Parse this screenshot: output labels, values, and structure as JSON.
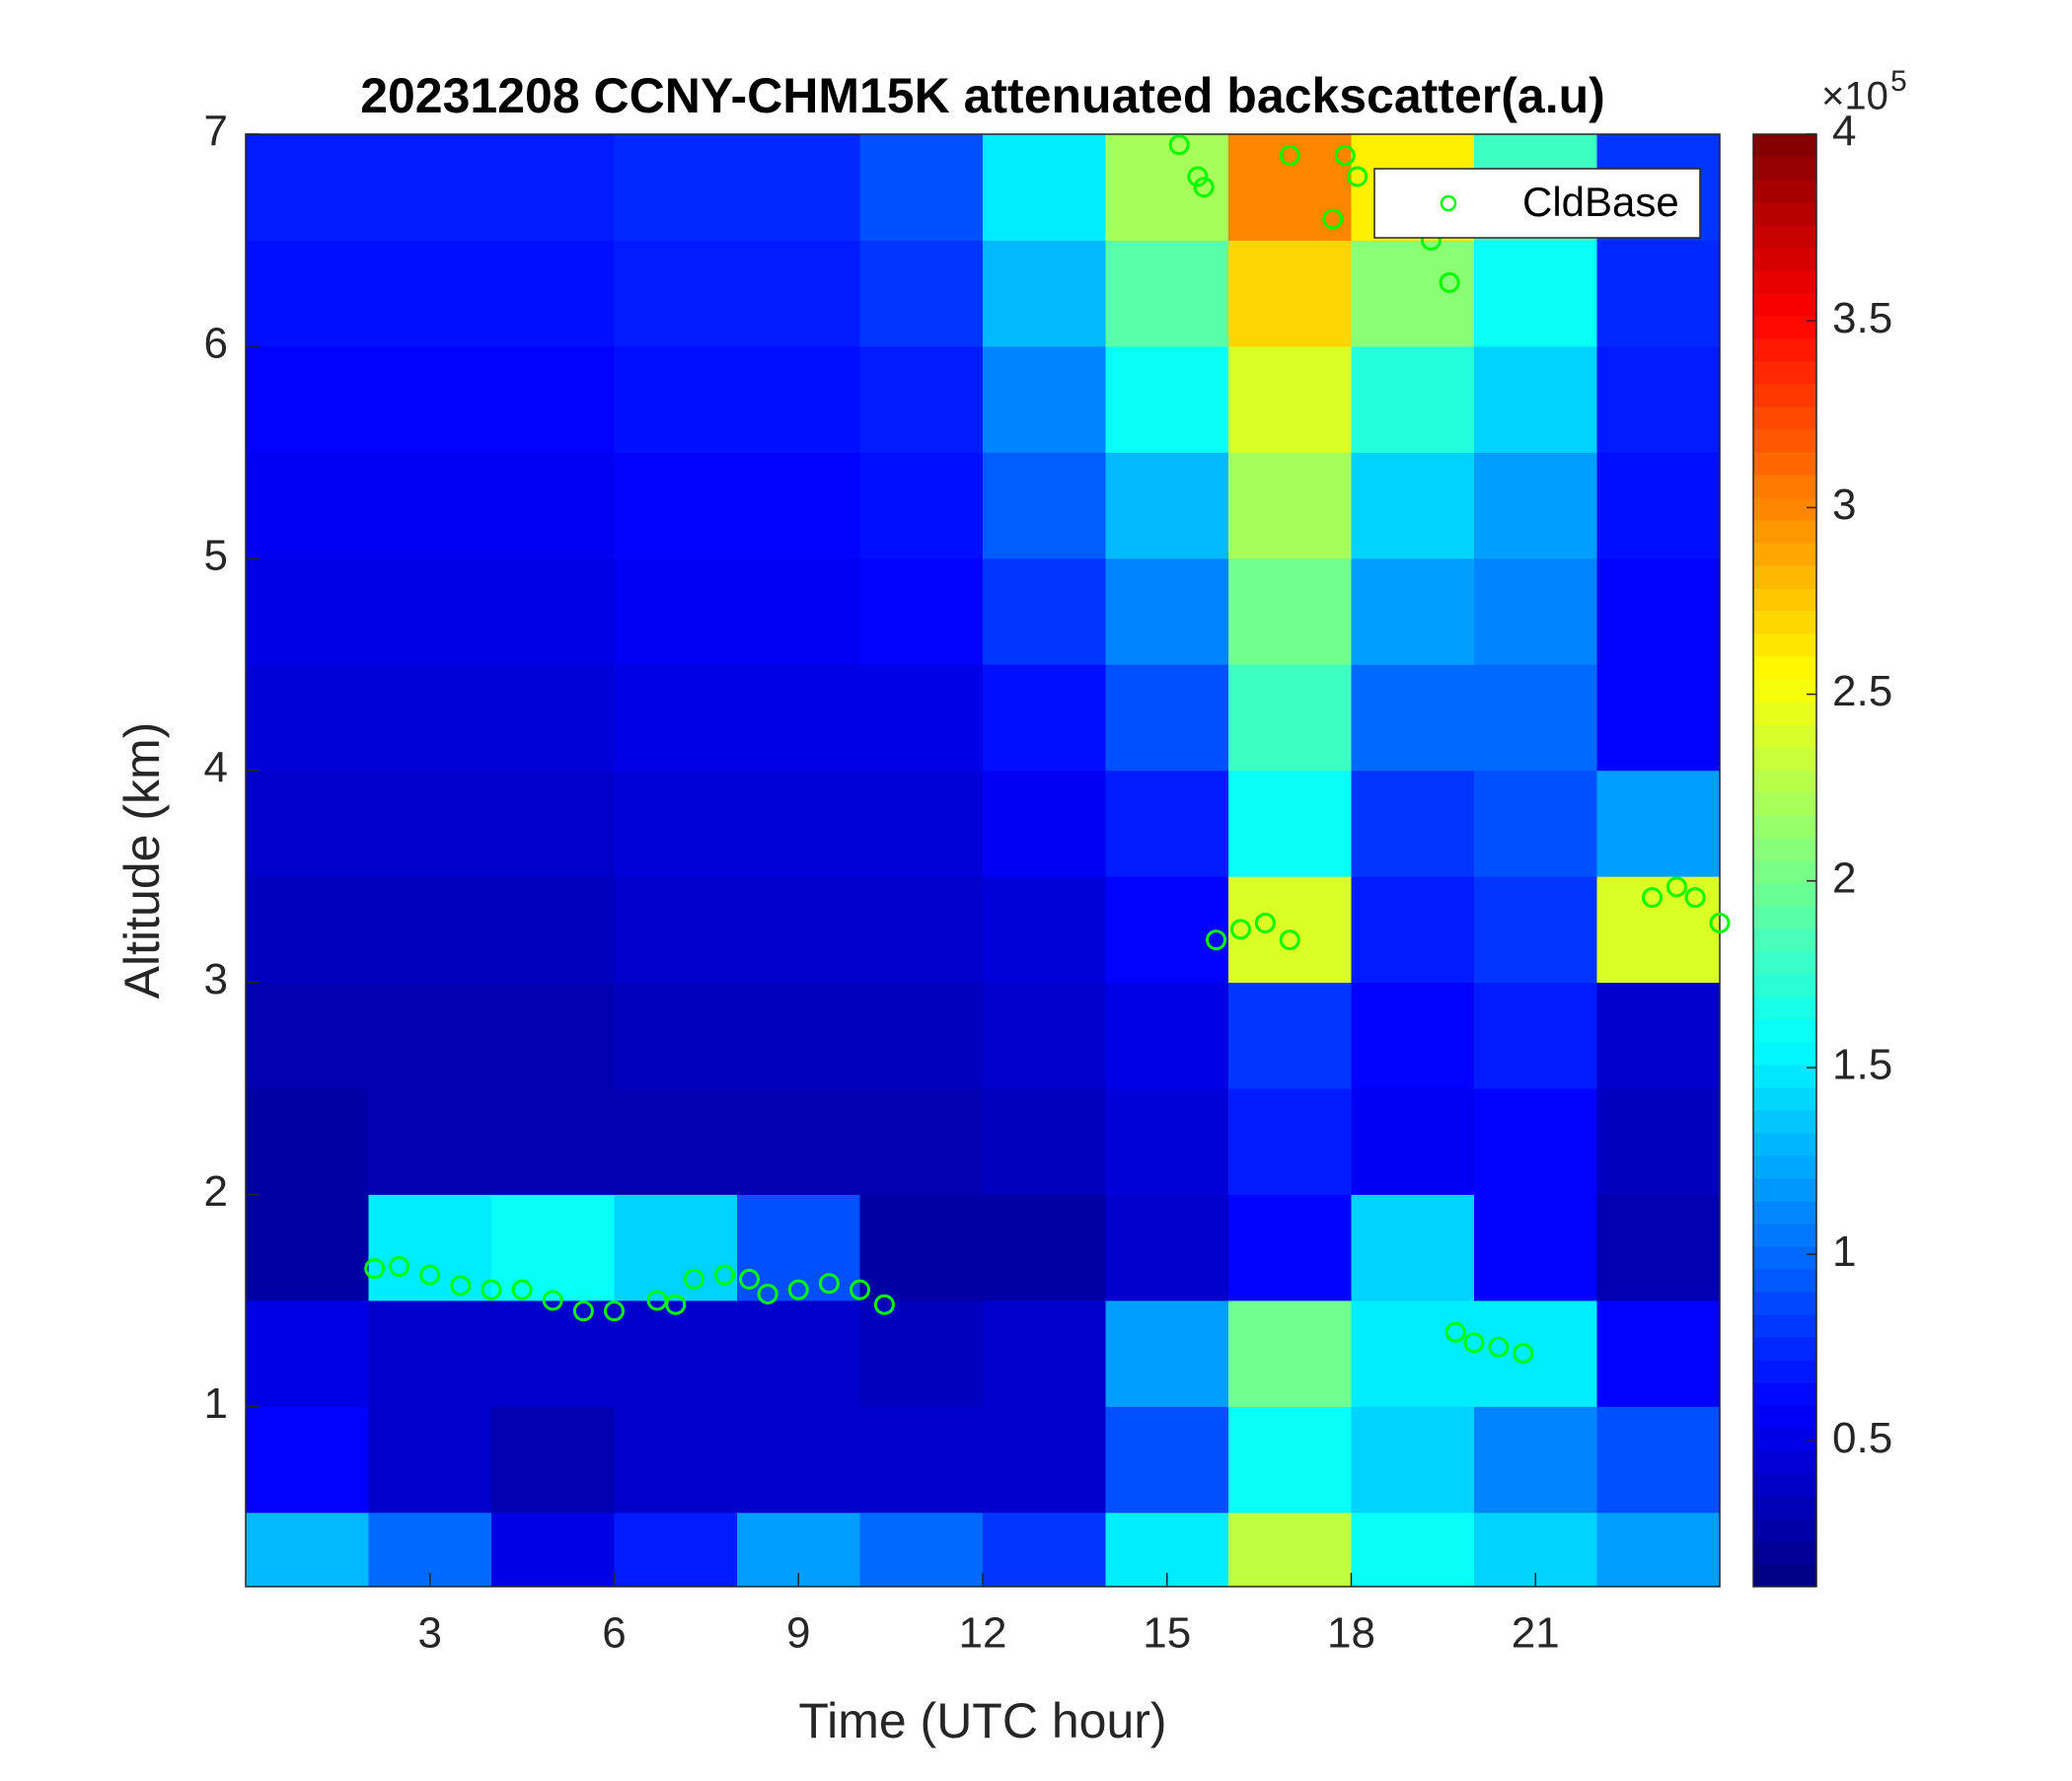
{
  "chart_data": {
    "type": "heatmap",
    "title": "20231208 CCNY-CHM15K attenuated backscatter(a.u)",
    "x_label": "Time (UTC hour)",
    "y_label": "Altitude (km)",
    "xlim": [
      0,
      24
    ],
    "xticks": [
      3,
      6,
      9,
      12,
      15,
      18,
      21
    ],
    "ylim": [
      0.15,
      7
    ],
    "yticks": [
      1,
      2,
      3,
      4,
      5,
      6,
      7
    ],
    "colormap": "jet",
    "clim": [
      0.11,
      4
    ],
    "cticks": [
      0.5,
      1,
      1.5,
      2,
      2.5,
      3,
      3.5,
      4
    ],
    "colorbar_multiplier": "×10",
    "colorbar_exponent": "5",
    "xbins": [
      0,
      2,
      4,
      6,
      8,
      10,
      12,
      14,
      16,
      18,
      20,
      22,
      24
    ],
    "ybins": [
      0.15,
      0.5,
      1,
      1.5,
      2,
      2.5,
      3,
      3.5,
      4,
      4.5,
      5,
      5.5,
      6,
      6.5,
      7
    ],
    "z": [
      [
        1.3,
        1.0,
        0.5,
        0.7,
        1.2,
        1.0,
        0.8,
        1.5,
        2.3,
        1.6,
        1.4,
        1.2
      ],
      [
        0.6,
        0.4,
        0.3,
        0.4,
        0.4,
        0.4,
        0.4,
        0.9,
        1.6,
        1.4,
        1.1,
        0.9
      ],
      [
        0.5,
        0.4,
        0.4,
        0.4,
        0.4,
        0.35,
        0.4,
        1.2,
        2.0,
        1.5,
        1.5,
        0.6
      ],
      [
        0.25,
        1.5,
        1.6,
        1.4,
        0.9,
        0.25,
        0.25,
        0.4,
        0.6,
        1.4,
        0.6,
        0.3
      ],
      [
        0.25,
        0.3,
        0.3,
        0.3,
        0.3,
        0.3,
        0.35,
        0.45,
        0.7,
        0.55,
        0.6,
        0.35
      ],
      [
        0.3,
        0.3,
        0.3,
        0.35,
        0.35,
        0.35,
        0.4,
        0.5,
        0.8,
        0.6,
        0.7,
        0.4
      ],
      [
        0.35,
        0.35,
        0.35,
        0.4,
        0.4,
        0.4,
        0.45,
        0.6,
        2.4,
        0.7,
        0.8,
        2.4
      ],
      [
        0.4,
        0.4,
        0.4,
        0.45,
        0.45,
        0.45,
        0.55,
        0.7,
        1.6,
        0.8,
        0.9,
        1.2
      ],
      [
        0.45,
        0.45,
        0.45,
        0.5,
        0.5,
        0.5,
        0.65,
        0.9,
        1.8,
        1.0,
        1.0,
        0.6
      ],
      [
        0.5,
        0.5,
        0.5,
        0.55,
        0.55,
        0.6,
        0.8,
        1.1,
        2.0,
        1.2,
        1.1,
        0.6
      ],
      [
        0.55,
        0.55,
        0.55,
        0.6,
        0.6,
        0.65,
        0.95,
        1.3,
        2.2,
        1.4,
        1.2,
        0.65
      ],
      [
        0.6,
        0.6,
        0.6,
        0.65,
        0.65,
        0.7,
        1.1,
        1.6,
        2.4,
        1.7,
        1.4,
        0.7
      ],
      [
        0.65,
        0.65,
        0.65,
        0.7,
        0.7,
        0.8,
        1.3,
        1.9,
        2.7,
        2.1,
        1.6,
        0.75
      ],
      [
        0.7,
        0.7,
        0.7,
        0.75,
        0.75,
        0.9,
        1.5,
        2.2,
        3.0,
        2.6,
        1.8,
        0.8
      ]
    ],
    "series": [
      {
        "name": "CldBase",
        "color": "#00ff00",
        "type": "scatter",
        "x": [
          2.1,
          2.5,
          3,
          3.5,
          4,
          4.5,
          5,
          5.5,
          6,
          6.7,
          7,
          7.3,
          7.8,
          8.2,
          8.5,
          9,
          9.5,
          10,
          10.4,
          15.2,
          15.5,
          15.6,
          15.8,
          16.2,
          16.6,
          17,
          17,
          17.7,
          17.9,
          18.1,
          19.3,
          19.6,
          19.7,
          20,
          20.4,
          20.8,
          22.9,
          23.3,
          23.6,
          24
        ],
        "y": [
          1.65,
          1.66,
          1.62,
          1.57,
          1.55,
          1.55,
          1.5,
          1.45,
          1.45,
          1.5,
          1.48,
          1.6,
          1.62,
          1.6,
          1.53,
          1.55,
          1.58,
          1.55,
          1.48,
          6.95,
          6.8,
          6.75,
          3.2,
          3.25,
          3.28,
          3.2,
          6.9,
          6.6,
          6.9,
          6.8,
          6.5,
          6.3,
          1.35,
          1.3,
          1.28,
          1.25,
          3.4,
          3.45,
          3.4,
          3.28
        ]
      }
    ],
    "legend": "northeast"
  }
}
